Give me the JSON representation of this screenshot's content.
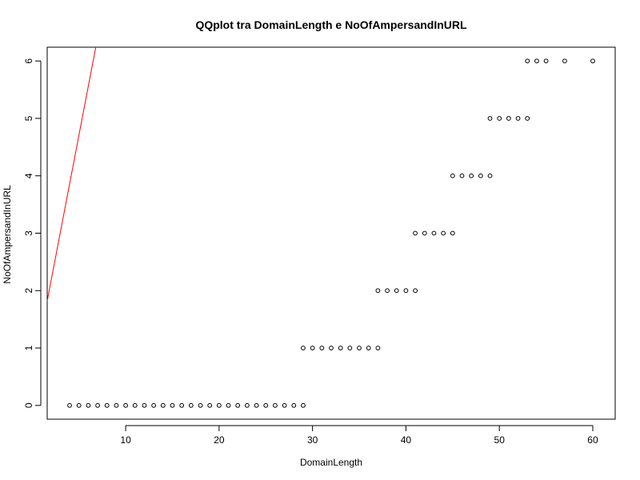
{
  "chart_data": {
    "type": "scatter",
    "title": "QQplot tra DomainLength e NoOfAmpersandInURL",
    "xlabel": "DomainLength",
    "ylabel": "NoOfAmpersandInURL",
    "xlim": [
      1.6,
      62.4
    ],
    "ylim": [
      -0.24,
      6.24
    ],
    "xticks": [
      10,
      20,
      30,
      40,
      50,
      60
    ],
    "yticks": [
      0,
      1,
      2,
      3,
      4,
      5,
      6
    ],
    "grid": false,
    "legend": "none",
    "marker": "open-circle",
    "points": [
      {
        "x": 4,
        "y": 0
      },
      {
        "x": 5,
        "y": 0
      },
      {
        "x": 6,
        "y": 0
      },
      {
        "x": 7,
        "y": 0
      },
      {
        "x": 8,
        "y": 0
      },
      {
        "x": 9,
        "y": 0
      },
      {
        "x": 10,
        "y": 0
      },
      {
        "x": 11,
        "y": 0
      },
      {
        "x": 12,
        "y": 0
      },
      {
        "x": 13,
        "y": 0
      },
      {
        "x": 14,
        "y": 0
      },
      {
        "x": 15,
        "y": 0
      },
      {
        "x": 16,
        "y": 0
      },
      {
        "x": 17,
        "y": 0
      },
      {
        "x": 18,
        "y": 0
      },
      {
        "x": 19,
        "y": 0
      },
      {
        "x": 20,
        "y": 0
      },
      {
        "x": 21,
        "y": 0
      },
      {
        "x": 22,
        "y": 0
      },
      {
        "x": 23,
        "y": 0
      },
      {
        "x": 24,
        "y": 0
      },
      {
        "x": 25,
        "y": 0
      },
      {
        "x": 26,
        "y": 0
      },
      {
        "x": 27,
        "y": 0
      },
      {
        "x": 28,
        "y": 0
      },
      {
        "x": 29,
        "y": 0
      },
      {
        "x": 29,
        "y": 1
      },
      {
        "x": 30,
        "y": 1
      },
      {
        "x": 31,
        "y": 1
      },
      {
        "x": 32,
        "y": 1
      },
      {
        "x": 33,
        "y": 1
      },
      {
        "x": 34,
        "y": 1
      },
      {
        "x": 35,
        "y": 1
      },
      {
        "x": 36,
        "y": 1
      },
      {
        "x": 37,
        "y": 1
      },
      {
        "x": 37,
        "y": 2
      },
      {
        "x": 38,
        "y": 2
      },
      {
        "x": 39,
        "y": 2
      },
      {
        "x": 40,
        "y": 2
      },
      {
        "x": 41,
        "y": 2
      },
      {
        "x": 41,
        "y": 3
      },
      {
        "x": 42,
        "y": 3
      },
      {
        "x": 43,
        "y": 3
      },
      {
        "x": 44,
        "y": 3
      },
      {
        "x": 45,
        "y": 3
      },
      {
        "x": 45,
        "y": 4
      },
      {
        "x": 46,
        "y": 4
      },
      {
        "x": 47,
        "y": 4
      },
      {
        "x": 48,
        "y": 4
      },
      {
        "x": 49,
        "y": 4
      },
      {
        "x": 49,
        "y": 5
      },
      {
        "x": 50,
        "y": 5
      },
      {
        "x": 51,
        "y": 5
      },
      {
        "x": 52,
        "y": 5
      },
      {
        "x": 53,
        "y": 5
      },
      {
        "x": 53,
        "y": 6
      },
      {
        "x": 54,
        "y": 6
      },
      {
        "x": 55,
        "y": 6
      },
      {
        "x": 57,
        "y": 6
      },
      {
        "x": 60,
        "y": 6
      }
    ],
    "reference_line": {
      "color": "#ff0000",
      "x1": 1.6,
      "y1": 1.82,
      "x2": 6.8,
      "y2": 6.24
    }
  }
}
